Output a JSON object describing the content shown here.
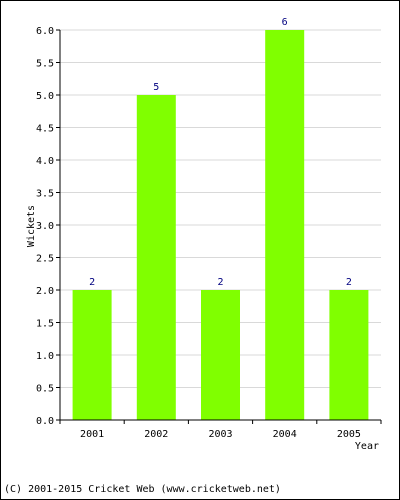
{
  "chart_data": {
    "type": "bar",
    "categories": [
      "2001",
      "2002",
      "2003",
      "2004",
      "2005"
    ],
    "values": [
      2,
      5,
      2,
      6,
      2
    ],
    "data_labels": [
      "2",
      "5",
      "2",
      "6",
      "2"
    ],
    "xlabel": "Year",
    "ylabel": "Wickets",
    "ylim": [
      0,
      6
    ],
    "yticks": [
      0.0,
      0.5,
      1.0,
      1.5,
      2.0,
      2.5,
      3.0,
      3.5,
      4.0,
      4.5,
      5.0,
      5.5,
      6.0
    ],
    "ytick_labels": [
      "0.0",
      "0.5",
      "1.0",
      "1.5",
      "2.0",
      "2.5",
      "3.0",
      "3.5",
      "4.0",
      "4.5",
      "5.0",
      "5.5",
      "6.0"
    ],
    "grid": true,
    "bar_color": "#80ff00",
    "label_color": "#000080"
  },
  "footer": {
    "copyright": "(C) 2001-2015 Cricket Web (www.cricketweb.net)"
  }
}
